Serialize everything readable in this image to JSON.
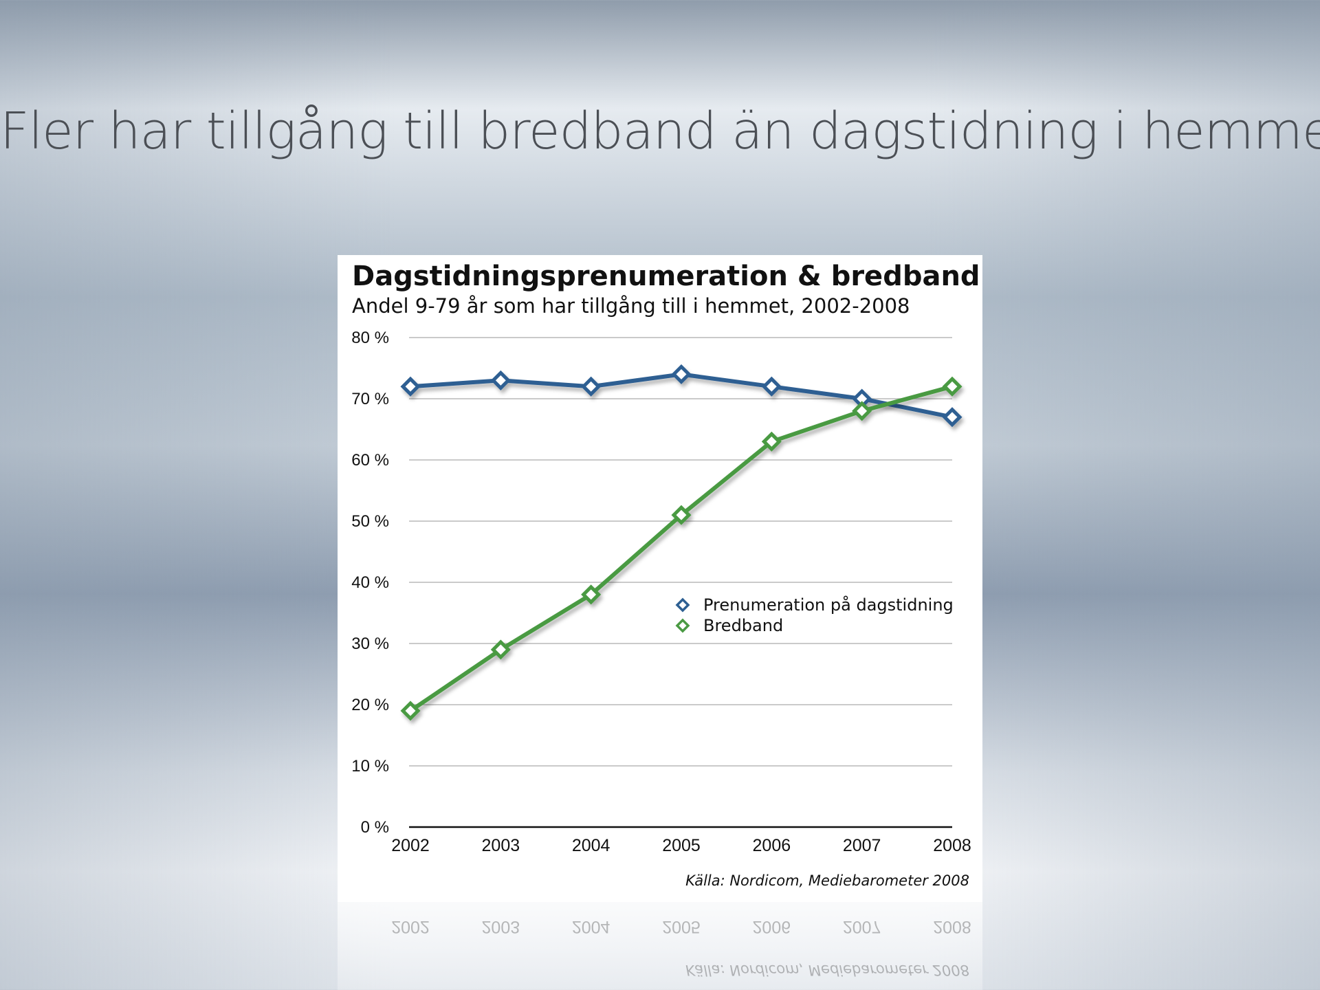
{
  "slide": {
    "title": "Fler har tillgång till bredband än dagstidning i hemmet"
  },
  "chart_data": {
    "type": "line",
    "title": "Dagstidningsprenumeration & bredband",
    "subtitle": "Andel 9-79 år som har tillgång till i hemmet, 2002-2008",
    "x": [
      "2002",
      "2003",
      "2004",
      "2005",
      "2006",
      "2007",
      "2008"
    ],
    "series": [
      {
        "name": "Prenumeration på dagstidning",
        "color": "#2d5f92",
        "values": [
          72,
          73,
          72,
          74,
          72,
          70,
          67
        ]
      },
      {
        "name": "Bredband",
        "color": "#4a9a43",
        "values": [
          19,
          29,
          38,
          51,
          63,
          68,
          72
        ]
      }
    ],
    "ylim": [
      0,
      80
    ],
    "yticks": [
      "0 %",
      "10 %",
      "20 %",
      "30 %",
      "40 %",
      "50 %",
      "60 %",
      "70 %",
      "80 %"
    ],
    "grid": true,
    "legend_position": "center-right",
    "source": "Källa: Nordicom, Mediebarometer 2008"
  }
}
